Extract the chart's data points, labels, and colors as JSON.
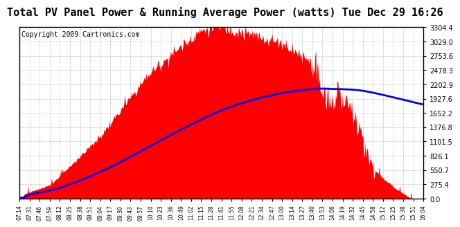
{
  "title": "Total PV Panel Power & Running Average Power (watts) Tue Dec 29 16:26",
  "copyright": "Copyright 2009 Cartronics.com",
  "yticks": [
    0.0,
    275.4,
    550.7,
    826.1,
    1101.5,
    1376.8,
    1652.2,
    1927.6,
    2202.9,
    2478.3,
    2753.6,
    3029.0,
    3304.4
  ],
  "ymax": 3304.4,
  "ymin": 0.0,
  "fill_color": "#FF0000",
  "line_color": "#0000EE",
  "background_color": "#FFFFFF",
  "grid_color": "#C0C0C0",
  "title_fontsize": 11,
  "copyright_fontsize": 7,
  "xtick_labels": [
    "07:14",
    "07:31",
    "07:46",
    "07:59",
    "08:12",
    "08:25",
    "08:38",
    "08:51",
    "09:04",
    "09:17",
    "09:30",
    "09:43",
    "09:57",
    "10:10",
    "10:23",
    "10:36",
    "10:49",
    "11:02",
    "11:15",
    "11:28",
    "11:41",
    "11:55",
    "12:08",
    "12:21",
    "12:34",
    "12:47",
    "13:00",
    "13:14",
    "13:27",
    "13:40",
    "13:53",
    "14:06",
    "14:19",
    "14:32",
    "14:45",
    "14:58",
    "15:12",
    "15:25",
    "15:38",
    "15:51",
    "16:04"
  ]
}
